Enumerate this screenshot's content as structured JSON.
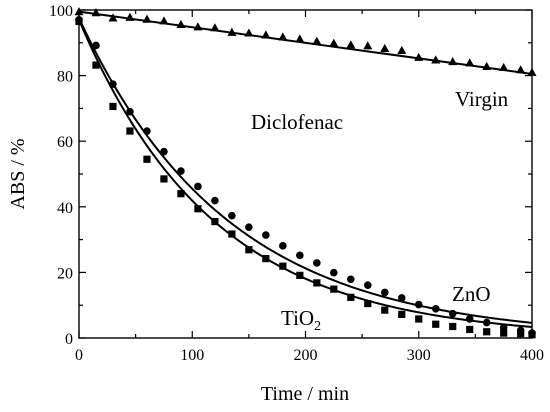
{
  "chart_data": {
    "type": "scatter",
    "xlabel": "Time / min",
    "ylabel": "ABS / %",
    "xlim": [
      0,
      400
    ],
    "ylim": [
      0,
      100
    ],
    "xticks": [
      "0",
      "100",
      "200",
      "300",
      "400"
    ],
    "yticks": [
      "0",
      "20",
      "40",
      "60",
      "80",
      "100"
    ],
    "grid": false,
    "annotations": {
      "title": "Diclofenac",
      "virgin": "Virgin",
      "zno": "ZnO",
      "tio2_base": "TiO",
      "tio2_sub": "2"
    },
    "series": [
      {
        "name": "Virgin",
        "marker": "triangle",
        "x": [
          0,
          15,
          30,
          45,
          60,
          75,
          90,
          105,
          120,
          135,
          150,
          165,
          180,
          195,
          210,
          225,
          240,
          255,
          270,
          285,
          300,
          315,
          330,
          345,
          360,
          375,
          390,
          400
        ],
        "y": [
          99.5,
          99.2,
          97.6,
          97.8,
          97.2,
          96.7,
          95.6,
          94.9,
          94.6,
          93.2,
          93.0,
          92.4,
          91.8,
          91.2,
          90.5,
          89.9,
          89.4,
          89.1,
          88.3,
          87.7,
          85.6,
          84.8,
          84.3,
          83.9,
          82.8,
          82.5,
          81.8,
          81.0
        ],
        "fit_start": 99.5,
        "fit_end": 80.5
      },
      {
        "name": "ZnO",
        "marker": "circle",
        "x": [
          0,
          15,
          30,
          45,
          60,
          75,
          90,
          105,
          120,
          135,
          150,
          165,
          180,
          195,
          210,
          225,
          240,
          255,
          270,
          285,
          300,
          315,
          330,
          345,
          360,
          375,
          390,
          400
        ],
        "y": [
          97.0,
          89.2,
          77.4,
          69.0,
          63.1,
          56.8,
          50.9,
          46.2,
          41.9,
          37.3,
          33.8,
          31.4,
          28.1,
          25.2,
          22.9,
          19.9,
          17.9,
          16.1,
          13.9,
          12.2,
          10.2,
          8.9,
          7.4,
          5.8,
          4.7,
          3.2,
          2.3,
          1.5
        ],
        "fit_a": 97.5,
        "fit_k": 0.00762
      },
      {
        "name": "TiO2",
        "marker": "square",
        "x": [
          0,
          15,
          30,
          45,
          60,
          75,
          90,
          105,
          120,
          135,
          150,
          165,
          180,
          195,
          210,
          225,
          240,
          255,
          270,
          285,
          300,
          315,
          330,
          345,
          360,
          375,
          390,
          400
        ],
        "y": [
          96.5,
          83.2,
          70.6,
          63.1,
          54.5,
          48.5,
          44.0,
          39.4,
          35.5,
          31.7,
          26.9,
          24.2,
          21.9,
          19.1,
          16.8,
          14.9,
          12.4,
          10.5,
          8.5,
          7.2,
          5.8,
          4.2,
          3.5,
          2.6,
          1.9,
          1.5,
          1.3,
          1.0
        ],
        "fit_a": 97.0,
        "fit_k": 0.0084
      }
    ]
  }
}
